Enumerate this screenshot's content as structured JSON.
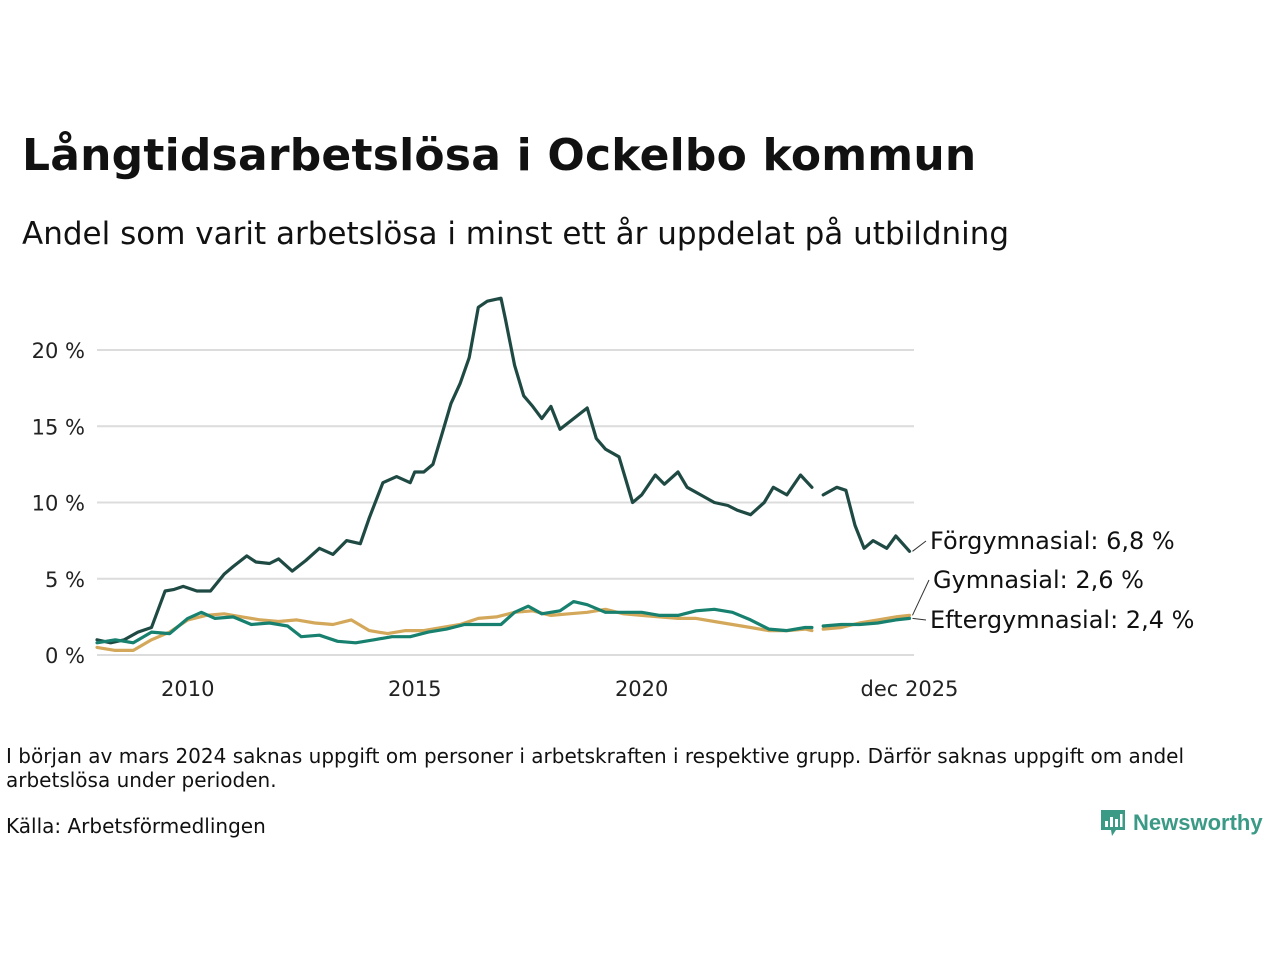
{
  "title": "Långtidsarbetslösa i Ockelbo kommun",
  "subtitle": "Andel som varit arbetslösa i minst ett år uppdelat på utbildning",
  "note": "I början av mars 2024 saknas uppgift om personer i arbetskraften i respektive grupp. Därför saknas uppgift om andel arbetslösa under perioden.",
  "source": "Källa: Arbetsförmedlingen",
  "logo_text": "Newsworthy",
  "chart_data": {
    "type": "line",
    "title": "Långtidsarbetslösa i Ockelbo kommun",
    "subtitle": "Andel som varit arbetslösa i minst ett år uppdelat på utbildning",
    "xlabel": "",
    "ylabel": "",
    "x_range": [
      2008.0,
      2026.0
    ],
    "ylim": [
      0,
      23.5
    ],
    "y_ticks": [
      0,
      5,
      10,
      15,
      20
    ],
    "y_tick_labels": [
      "0 %",
      "5 %",
      "10 %",
      "15 %",
      "20 %"
    ],
    "x_ticks": [
      2010,
      2015,
      2020,
      2025.9
    ],
    "x_tick_labels": [
      "2010",
      "2015",
      "2020",
      "dec 2025"
    ],
    "grid": true,
    "legend": "end-of-line labels",
    "gap": [
      2023.75,
      2024.0
    ],
    "series": [
      {
        "name": "Förgymnasial",
        "end_label": "Förgymnasial: 6,8 %",
        "color": "#1f4a44",
        "x": [
          2008.0,
          2008.3,
          2008.6,
          2008.9,
          2009.2,
          2009.5,
          2009.7,
          2009.9,
          2010.2,
          2010.5,
          2010.8,
          2011.0,
          2011.3,
          2011.5,
          2011.8,
          2012.0,
          2012.3,
          2012.6,
          2012.9,
          2013.2,
          2013.5,
          2013.8,
          2014.0,
          2014.3,
          2014.6,
          2014.9,
          2015.0,
          2015.2,
          2015.4,
          2015.6,
          2015.8,
          2016.0,
          2016.2,
          2016.4,
          2016.6,
          2016.9,
          2017.0,
          2017.2,
          2017.4,
          2017.6,
          2017.8,
          2018.0,
          2018.2,
          2018.5,
          2018.8,
          2019.0,
          2019.2,
          2019.5,
          2019.8,
          2020.0,
          2020.3,
          2020.5,
          2020.8,
          2021.0,
          2021.3,
          2021.6,
          2021.9,
          2022.1,
          2022.4,
          2022.7,
          2022.9,
          2023.2,
          2023.5,
          2023.75,
          2024.0,
          2024.3,
          2024.5,
          2024.7,
          2024.9,
          2025.1,
          2025.4,
          2025.6,
          2025.9
        ],
        "values": [
          1.0,
          0.8,
          1.0,
          1.5,
          1.8,
          4.2,
          4.3,
          4.5,
          4.2,
          4.2,
          5.3,
          5.8,
          6.5,
          6.1,
          6.0,
          6.3,
          5.5,
          6.2,
          7.0,
          6.6,
          7.5,
          7.3,
          9.0,
          11.3,
          11.7,
          11.3,
          12.0,
          12.0,
          12.5,
          14.5,
          16.5,
          17.8,
          19.5,
          22.8,
          23.2,
          23.4,
          22.0,
          19.0,
          17.0,
          16.3,
          15.5,
          16.3,
          14.8,
          15.5,
          16.2,
          14.2,
          13.5,
          13.0,
          10.0,
          10.5,
          11.8,
          11.2,
          12.0,
          11.0,
          10.5,
          10.0,
          9.8,
          9.5,
          9.2,
          10.0,
          11.0,
          10.5,
          11.8,
          11.0,
          10.5,
          11.0,
          10.8,
          8.5,
          7.0,
          7.5,
          7.0,
          7.8,
          6.8
        ]
      },
      {
        "name": "Gymnasial",
        "end_label": "Gymnasial: 2,6 %",
        "color": "#d4a85a",
        "x": [
          2008.0,
          2008.4,
          2008.8,
          2009.2,
          2009.6,
          2010.0,
          2010.4,
          2010.8,
          2011.2,
          2011.6,
          2012.0,
          2012.4,
          2012.8,
          2013.2,
          2013.6,
          2014.0,
          2014.4,
          2014.8,
          2015.2,
          2015.6,
          2016.0,
          2016.4,
          2016.8,
          2017.2,
          2017.6,
          2018.0,
          2018.4,
          2018.8,
          2019.2,
          2019.6,
          2020.0,
          2020.4,
          2020.8,
          2021.2,
          2021.6,
          2022.0,
          2022.4,
          2022.8,
          2023.2,
          2023.6,
          2023.75,
          2024.0,
          2024.4,
          2024.8,
          2025.2,
          2025.6,
          2025.9
        ],
        "values": [
          0.5,
          0.3,
          0.3,
          1.0,
          1.5,
          2.3,
          2.6,
          2.7,
          2.5,
          2.3,
          2.2,
          2.3,
          2.1,
          2.0,
          2.3,
          1.6,
          1.4,
          1.6,
          1.6,
          1.8,
          2.0,
          2.4,
          2.5,
          2.8,
          2.9,
          2.6,
          2.7,
          2.8,
          3.0,
          2.7,
          2.6,
          2.5,
          2.4,
          2.4,
          2.2,
          2.0,
          1.8,
          1.6,
          1.6,
          1.7,
          1.6,
          1.7,
          1.8,
          2.1,
          2.3,
          2.5,
          2.6
        ]
      },
      {
        "name": "Eftergymnasial",
        "end_label": "Eftergymnasial: 2,4 %",
        "color": "#17806e",
        "x": [
          2008.0,
          2008.4,
          2008.8,
          2009.2,
          2009.6,
          2010.0,
          2010.3,
          2010.6,
          2011.0,
          2011.4,
          2011.8,
          2012.2,
          2012.5,
          2012.9,
          2013.3,
          2013.7,
          2014.1,
          2014.5,
          2014.9,
          2015.3,
          2015.7,
          2016.1,
          2016.5,
          2016.9,
          2017.2,
          2017.5,
          2017.8,
          2018.2,
          2018.5,
          2018.8,
          2019.2,
          2019.6,
          2020.0,
          2020.4,
          2020.8,
          2021.2,
          2021.6,
          2022.0,
          2022.4,
          2022.8,
          2023.2,
          2023.6,
          2023.75,
          2024.0,
          2024.4,
          2024.8,
          2025.2,
          2025.6,
          2025.9
        ],
        "values": [
          0.8,
          1.0,
          0.8,
          1.5,
          1.4,
          2.4,
          2.8,
          2.4,
          2.5,
          2.0,
          2.1,
          1.9,
          1.2,
          1.3,
          0.9,
          0.8,
          1.0,
          1.2,
          1.2,
          1.5,
          1.7,
          2.0,
          2.0,
          2.0,
          2.8,
          3.2,
          2.7,
          2.9,
          3.5,
          3.3,
          2.8,
          2.8,
          2.8,
          2.6,
          2.6,
          2.9,
          3.0,
          2.8,
          2.3,
          1.7,
          1.6,
          1.8,
          1.8,
          1.9,
          2.0,
          2.0,
          2.1,
          2.3,
          2.4
        ]
      }
    ]
  }
}
